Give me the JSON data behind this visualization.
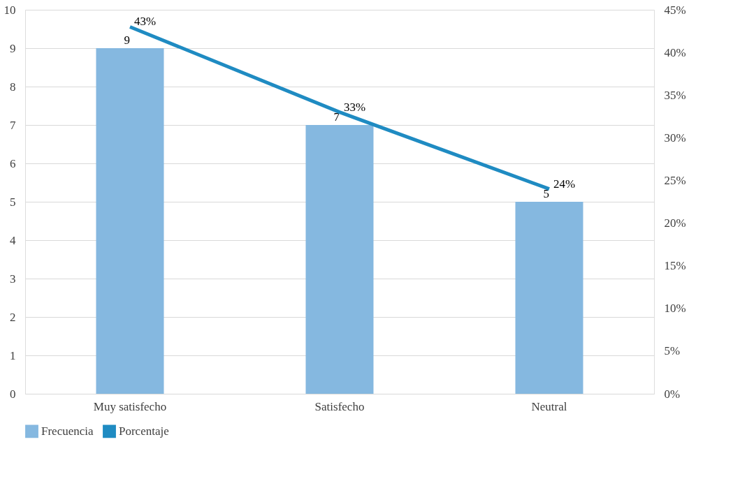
{
  "chart_data": {
    "type": "bar",
    "categories": [
      "Muy satisfecho",
      "Satisfecho",
      "Neutral"
    ],
    "series": [
      {
        "name": "Frecuencia",
        "color": "#85b8e0",
        "values": [
          9,
          7,
          5
        ],
        "value_labels": [
          "9",
          "7",
          "5"
        ]
      },
      {
        "name": "Porcentaje",
        "type": "line",
        "axis": "y2",
        "color": "#1f8bc2",
        "values": [
          43,
          33,
          24
        ],
        "value_labels": [
          "43%",
          "33%",
          "24%"
        ]
      }
    ],
    "ylim": [
      0,
      10
    ],
    "yticks": [
      0,
      1,
      2,
      3,
      4,
      5,
      6,
      7,
      8,
      9,
      10
    ],
    "y2lim": [
      0,
      45
    ],
    "y2ticks": [
      {
        "value": 0,
        "label": "0%"
      },
      {
        "value": 5,
        "label": "5%"
      },
      {
        "value": 10,
        "label": "10%"
      },
      {
        "value": 15,
        "label": "15%"
      },
      {
        "value": 20,
        "label": "20%"
      },
      {
        "value": 25,
        "label": "25%"
      },
      {
        "value": 30,
        "label": "30%"
      },
      {
        "value": 35,
        "label": "35%"
      },
      {
        "value": 40,
        "label": "40%"
      },
      {
        "value": 45,
        "label": "45%"
      }
    ],
    "grid": "y",
    "legend": "bottom",
    "line_style": "solid"
  }
}
